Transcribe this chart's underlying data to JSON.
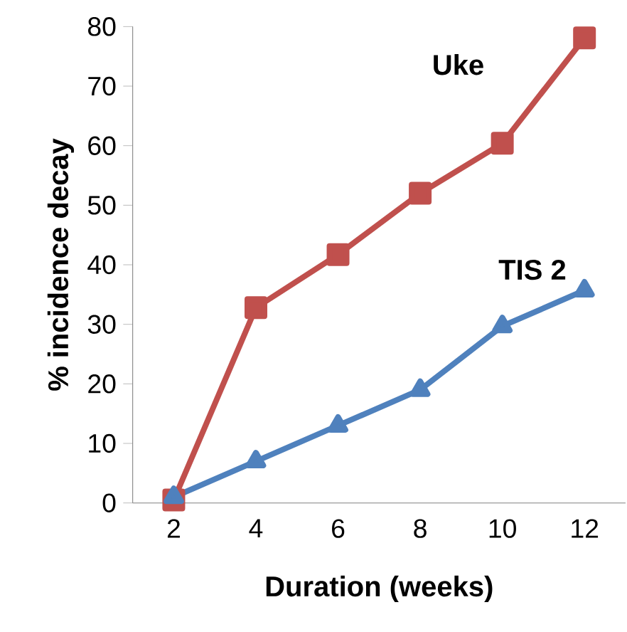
{
  "chart_data": {
    "type": "line",
    "xlabel": "Duration (weeks)",
    "ylabel": "% incidence decay",
    "categories": [
      "2",
      "4",
      "6",
      "8",
      "10",
      "12"
    ],
    "series": [
      {
        "name": "Uke",
        "color": "#c0504d",
        "marker": "square",
        "values": [
          0.5,
          32.8,
          41.7,
          52,
          60.4,
          78.1
        ]
      },
      {
        "name": "TIS 2",
        "color": "#4f81bd",
        "marker": "triangle",
        "values": [
          1,
          7,
          13,
          19,
          29.7,
          35.7
        ]
      }
    ],
    "ylim": [
      0,
      80
    ],
    "yticks": [
      0,
      10,
      20,
      30,
      40,
      50,
      60,
      70,
      80
    ],
    "grid": false,
    "line_style": "solid"
  }
}
